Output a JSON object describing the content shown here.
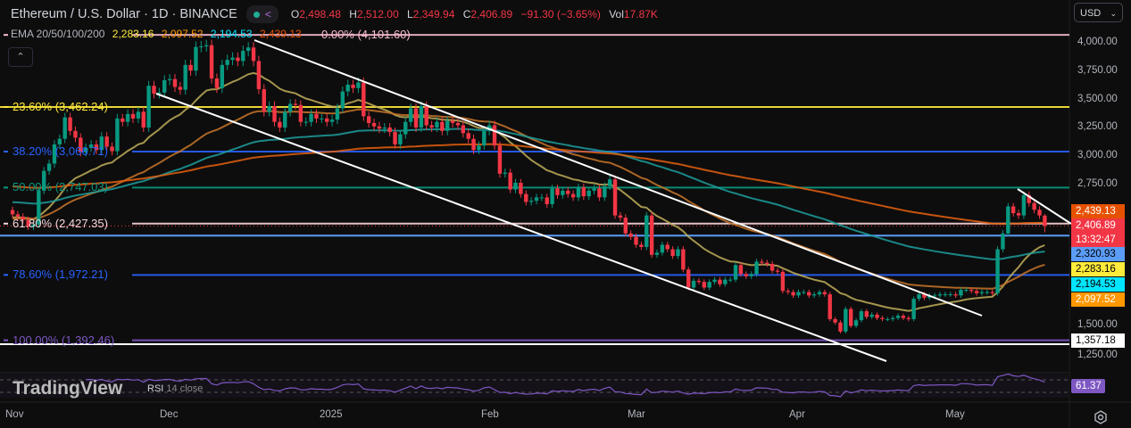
{
  "header": {
    "symbol": "Ethereum / U.S. Dollar · 1D · BINANCE",
    "ohlc": {
      "o_label": "O",
      "o": "2,498.48",
      "h_label": "H",
      "h": "2,512.00",
      "l_label": "L",
      "l": "2,349.94",
      "c_label": "C",
      "c": "2,406.89",
      "change": "−91.30 (−3.65%)",
      "vol_label": "Vol",
      "vol": "17.87K"
    },
    "currency": "USD",
    "collapse_icon": "chevron-up-icon"
  },
  "legend": {
    "title": "EMA 20/50/100/200",
    "values": [
      {
        "value": "2,283.16",
        "color": "#ffeb3b"
      },
      {
        "value": "2,097.52",
        "color": "#ff9800"
      },
      {
        "value": "2,194.53",
        "color": "#00e5ff"
      },
      {
        "value": "2,439.13",
        "color": "#e65100"
      }
    ]
  },
  "fib_levels": [
    {
      "label": "0.00% (4,101.60)",
      "price": 4101.6,
      "color": "#f8bbd0"
    },
    {
      "label": "23.60% (3,462.24)",
      "price": 3462.24,
      "color": "#ffeb3b"
    },
    {
      "label": "38.20% (3,066.71)",
      "price": 3066.71,
      "color": "#2962ff"
    },
    {
      "label": "50.00% (2,747.03)",
      "price": 2747.03,
      "color": "#089981"
    },
    {
      "label": "61.80% (2,427.35)",
      "price": 2427.35,
      "color": "#f8d7dc"
    },
    {
      "label": "78.60% (1,972.21)",
      "price": 1972.21,
      "color": "#2962ff"
    },
    {
      "label": "100.00% (1,392.46)",
      "price": 1392.46,
      "color": "#7e57c2"
    }
  ],
  "price_axis": [
    "4,000.00",
    "3,750.00",
    "3,500.00",
    "3,250.00",
    "3,000.00",
    "2,750.00",
    "1,500.00",
    "1,250.00"
  ],
  "badges": [
    {
      "text": "2,439.13",
      "price": 2439.13,
      "bg": "#e65100",
      "fg": "#ffffff"
    },
    {
      "text": "2,406.89",
      "sub": "13:32:47",
      "price": 2406.89,
      "bg": "#f23645",
      "fg": "#ffffff"
    },
    {
      "text": "2,320.93",
      "price": 2320.93,
      "bg": "#5b9cf6",
      "fg": "#000000"
    },
    {
      "text": "2,283.16",
      "price": 2283.16,
      "bg": "#ffeb3b",
      "fg": "#000000"
    },
    {
      "text": "2,194.53",
      "price": 2194.53,
      "bg": "#00e5ff",
      "fg": "#000000"
    },
    {
      "text": "2,097.52",
      "price": 2097.52,
      "bg": "#ff9800",
      "fg": "#ffffff"
    },
    {
      "text": "1,357.18",
      "price": 1357.18,
      "bg": "#ffffff",
      "fg": "#000000"
    }
  ],
  "rsi": {
    "label": "RSI",
    "params": "14 close",
    "value": "61.37",
    "color": "#7e57c2"
  },
  "watermark": "TradingView",
  "time_axis": [
    "Nov",
    "Dec",
    "2025",
    "Feb",
    "Mar",
    "Apr",
    "May"
  ],
  "chart_data": {
    "type": "candlestick",
    "title": "Ethereum / U.S. Dollar · 1D · BINANCE",
    "x_tick_labels": [
      "Nov",
      "Dec",
      "2025",
      "Feb",
      "Mar",
      "Apr",
      "May"
    ],
    "y_range": [
      1200,
      4150
    ],
    "last_candle": {
      "open": 2498.48,
      "high": 2512.0,
      "low": 2349.94,
      "close": 2406.89
    },
    "closes": [
      2510,
      2490,
      2460,
      2400,
      2420,
      2720,
      2895,
      2960,
      3130,
      3180,
      3370,
      3250,
      3190,
      3060,
      3100,
      3130,
      3080,
      3200,
      3110,
      3070,
      3360,
      3330,
      3400,
      3360,
      3420,
      3280,
      3650,
      3580,
      3590,
      3700,
      3710,
      3640,
      3615,
      3835,
      3785,
      3995,
      4000,
      4010,
      3715,
      3630,
      3835,
      3880,
      3900,
      3870,
      3960,
      3990,
      3870,
      3620,
      3420,
      3470,
      3330,
      3280,
      3420,
      3490,
      3480,
      3330,
      3330,
      3400,
      3360,
      3360,
      3330,
      3350,
      3450,
      3600,
      3660,
      3630,
      3680,
      3380,
      3320,
      3290,
      3270,
      3280,
      3240,
      3130,
      3220,
      3330,
      3450,
      3280,
      3470,
      3300,
      3280,
      3330,
      3250,
      3340,
      3320,
      3300,
      3230,
      3180,
      3080,
      3120,
      3250,
      3300,
      3120,
      2870,
      2880,
      2730,
      2790,
      2690,
      2620,
      2630,
      2660,
      2660,
      2600,
      2740,
      2680,
      2720,
      2690,
      2660,
      2750,
      2670,
      2720,
      2740,
      2660,
      2760,
      2820,
      2500,
      2480,
      2340,
      2310,
      2240,
      2220,
      2500,
      2150,
      2170,
      2240,
      2200,
      2140,
      2200,
      2020,
      1860,
      1920,
      1910,
      1860,
      1910,
      1930,
      1890,
      1930,
      1930,
      2060,
      1980,
      1960,
      1980,
      2090,
      2080,
      2070,
      2010,
      2000,
      1830,
      1820,
      1790,
      1820,
      1820,
      1790,
      1800,
      1820,
      1800,
      1580,
      1550,
      1470,
      1670,
      1520,
      1570,
      1650,
      1600,
      1620,
      1590,
      1580,
      1580,
      1590,
      1610,
      1590,
      1580,
      1760,
      1800,
      1770,
      1790,
      1790,
      1800,
      1800,
      1800,
      1790,
      1840,
      1840,
      1830,
      1810,
      1820,
      1820,
      1810,
      2200,
      2340,
      2580,
      2520,
      2500,
      2680,
      2610,
      2550,
      2500,
      2406.89
    ],
    "series": [
      {
        "name": "EMA 20",
        "last": 2283.16,
        "color": "#bfae5a"
      },
      {
        "name": "EMA 50",
        "last": 2097.52,
        "color": "#c8762a"
      },
      {
        "name": "EMA 100",
        "last": 2194.53,
        "color": "#1f9e9e"
      },
      {
        "name": "EMA 200",
        "last": 2439.13,
        "color": "#e6600f"
      }
    ],
    "horizontal_lines": [
      {
        "price": 2320.93,
        "color": "#5b9cf6"
      },
      {
        "price": 1357.18,
        "color": "#ffffff"
      }
    ],
    "colors": {
      "up": "#089981",
      "down": "#f23645",
      "background": "#0d0d0d"
    }
  }
}
